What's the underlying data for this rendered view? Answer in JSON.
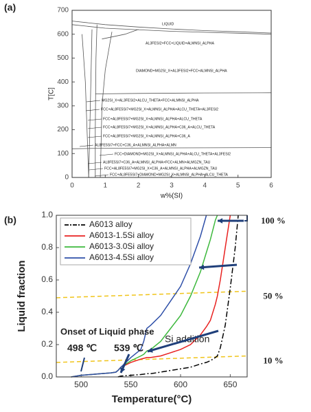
{
  "chart_data": [
    {
      "type": "phase-diagram",
      "panel": "(a)",
      "xlabel": "w%(SI)",
      "ylabel": "T[C]",
      "xlim": [
        0,
        6
      ],
      "ylim": [
        0,
        700
      ],
      "xticks": [
        0,
        1,
        2,
        3,
        4,
        5,
        6
      ],
      "yticks": [
        0,
        100,
        200,
        300,
        400,
        500,
        600,
        700
      ],
      "color": "#555555",
      "boundaries": [
        {
          "x": [
            0,
            1,
            2,
            3,
            4,
            5,
            6
          ],
          "y": [
            655,
            640,
            630,
            622,
            615,
            610,
            605
          ]
        },
        {
          "x": [
            0,
            1,
            3,
            6
          ],
          "y": [
            640,
            625,
            612,
            600
          ]
        },
        {
          "x": [
            0.75,
            0.72,
            0.7,
            0.7
          ],
          "y": [
            640,
            500,
            200,
            0
          ]
        },
        {
          "x": [
            0.6,
            0.55,
            0.5
          ],
          "y": [
            620,
            300,
            0
          ]
        },
        {
          "x": [
            0.7,
            2,
            4,
            6
          ],
          "y": [
            350,
            352,
            354,
            355
          ]
        },
        {
          "x": [
            1.2,
            1,
            0.9,
            0.85
          ],
          "y": [
            610,
            450,
            300,
            0
          ]
        },
        {
          "x": [
            0,
            0.8,
            3,
            6
          ],
          "y": [
            120,
            122,
            124,
            125
          ]
        },
        {
          "x": [
            0.9,
            1.6,
            2
          ],
          "y": [
            580,
            600,
            620
          ]
        },
        {
          "x": [
            0.3,
            0.4,
            0.5
          ],
          "y": [
            600,
            400,
            0
          ]
        }
      ],
      "annotations": [
        "LIQUID",
        "AL3FESI2+FCC+LIQUID+ALMNSI_ALPHA",
        "DIAMOND+MG2SI_X+AL3FESI2+FCC+ALMNSI_ALPHA",
        "MG2SI_X+AL3FESI2+ALCU_THETA+FCC+ALMNSI_ALPHA",
        "FCC+AL8FE5SI7+MG2SI_X+ALMNSI_ALPHA+ALCU_THETA+AL3FESI2",
        "FCC+AL8FE5SI7+MG2SI_X+ALMNSI_ALPHA+ALCU_THETA",
        "FCC+AL8FE5SI7+MG2SI_X+ALMNSI_ALPHA+C36_A+ALCU_THETA",
        "FCC+AL8FE5SI7+MG2SI_X+ALMNSI_ALPHA+C36_A",
        "AL8FE5SI7+FCC+C36_A+ALMNSI_ALPHA+ALMN",
        "FCC+DIAMOND+MG2SI_X+ALMNSI_ALPHA+ALCU_THETA+AL3FESI2",
        "AL8FE5SI7+C36_A+ALMNSI_ALPHA+FCC+ALMN+ALMGZN_TAU",
        "FCC+AL8FE5SI7+MG2SI_X+C36_A+ALMNSI_ALPHA+ALMGZN_TAU",
        "FCC+AL8FE5SI7+DIAMOND+MG2SI_X+ALMNSI_ALPHA+ALCU_THETA"
      ]
    },
    {
      "type": "line",
      "panel": "(b)",
      "xlabel": "Temperature(°C)",
      "ylabel": "Liquid fraction",
      "xlim": [
        475,
        667
      ],
      "ylim": [
        0,
        1
      ],
      "xticks": [
        500,
        550,
        600,
        650
      ],
      "yticks": [
        {
          "value": 0,
          "label": "0.0"
        },
        0.2,
        0.4,
        0.6,
        0.8,
        {
          "value": 1,
          "label": "1.0"
        }
      ],
      "x": [
        490,
        500,
        510,
        520,
        530,
        535,
        537,
        540,
        550,
        560,
        563,
        566,
        570,
        580,
        590,
        600,
        610,
        620,
        626,
        630,
        635,
        637,
        640,
        645,
        650,
        655,
        658
      ],
      "series": [
        {
          "name": "A6013 alloy",
          "color": "#000000",
          "values": [
            null,
            null,
            null,
            null,
            null,
            null,
            0,
            0.005,
            0.01,
            0.015,
            0.017,
            0.02,
            0.02,
            0.03,
            0.04,
            0.05,
            0.06,
            0.08,
            0.09,
            0.1,
            0.12,
            0.13,
            0.18,
            0.32,
            0.55,
            0.8,
            1.0
          ]
        },
        {
          "name": "A6013-1.5Si alloy",
          "color": "#e8201f",
          "values": [
            0,
            0.01,
            0.015,
            0.02,
            0.025,
            0.03,
            0.04,
            0.06,
            0.09,
            0.11,
            0.115,
            0.12,
            0.12,
            0.13,
            0.15,
            0.17,
            0.2,
            0.26,
            0.31,
            0.35,
            0.45,
            0.5,
            0.6,
            0.8,
            1.0,
            null,
            null
          ]
        },
        {
          "name": "A6013-3.0Si alloy",
          "color": "#3cb83c",
          "values": [
            0,
            0.01,
            0.015,
            0.02,
            0.025,
            0.03,
            0.04,
            0.06,
            0.1,
            0.13,
            0.14,
            0.16,
            0.17,
            0.22,
            0.3,
            0.38,
            0.5,
            0.65,
            0.77,
            0.85,
            0.97,
            1.0,
            null,
            null,
            null,
            null,
            null
          ]
        },
        {
          "name": "A6013-4.5Si alloy",
          "color": "#2e4fa8",
          "values": [
            0,
            0.01,
            0.015,
            0.02,
            0.025,
            0.03,
            0.04,
            0.06,
            0.12,
            0.17,
            0.22,
            0.3,
            0.32,
            0.38,
            0.47,
            0.56,
            0.7,
            0.87,
            1.0,
            null,
            null,
            null,
            null,
            null,
            null,
            null,
            null
          ]
        }
      ],
      "reference_lines": [
        {
          "label": "10 %",
          "color": "#f0c419",
          "x": [
            475,
            667
          ],
          "y": [
            0.09,
            0.13
          ]
        },
        {
          "label": "50 %",
          "color": "#f0c419",
          "x": [
            475,
            667
          ],
          "y": [
            0.49,
            0.53
          ]
        }
      ],
      "top_label": "100 %",
      "annotations": [
        "Onset of Liquid phase",
        "498 ℃",
        "539 ℃",
        "Si addition"
      ]
    }
  ]
}
